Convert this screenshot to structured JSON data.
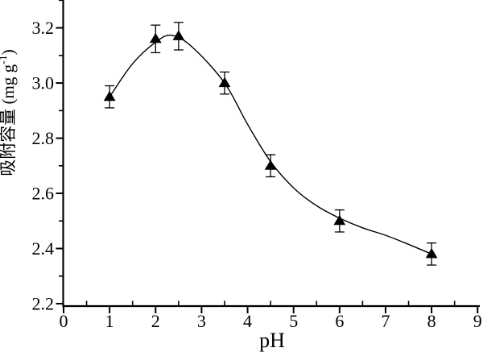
{
  "chart_data": {
    "type": "scatter",
    "title": "",
    "xlabel": "pH",
    "ylabel": {
      "text_cn": "吸附容量",
      "unit_prefix": " (mg g",
      "unit_sup": "-1",
      "unit_suffix": ")"
    },
    "xlim": [
      0,
      9
    ],
    "ylim": [
      2.2,
      3.3
    ],
    "x_major_ticks": [
      0,
      1,
      2,
      3,
      4,
      5,
      6,
      7,
      8,
      9
    ],
    "x_minor_tick_step": 0.5,
    "y_major_ticks": [
      "2.2",
      "2.4",
      "2.6",
      "2.8",
      "3.0",
      "3.2"
    ],
    "y_minor_tick_step": 0.1,
    "grid": false,
    "legend": false,
    "marker_style": "filled-triangle-up",
    "ink_color": "#000000",
    "background_color": "#ffffff",
    "series": [
      {
        "name": "adsorption-capacity-vs-pH",
        "x": [
          1,
          2,
          2.5,
          3.5,
          4.5,
          6,
          8
        ],
        "y": [
          2.95,
          3.16,
          3.17,
          3.0,
          2.7,
          2.5,
          2.38
        ],
        "yerr": [
          0.04,
          0.05,
          0.05,
          0.04,
          0.04,
          0.04,
          0.04
        ]
      }
    ],
    "fit_curve": {
      "x": [
        1,
        1.5,
        2,
        2.35,
        2.8,
        3.5,
        4,
        4.5,
        5,
        5.5,
        6,
        6.5,
        7,
        7.5,
        8
      ],
      "y": [
        2.95,
        3.07,
        3.148,
        3.173,
        3.13,
        3.0,
        2.85,
        2.715,
        2.62,
        2.555,
        2.51,
        2.475,
        2.448,
        2.415,
        2.38
      ]
    }
  }
}
